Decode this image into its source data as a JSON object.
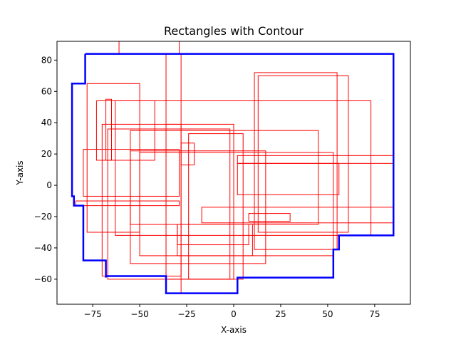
{
  "chart_data": {
    "type": "line",
    "title": "Rectangles with Contour",
    "xlabel": "X-axis",
    "ylabel": "Y-axis",
    "xlim": [
      -94,
      94
    ],
    "ylim": [
      -76,
      92
    ],
    "xticks": [
      -75,
      -50,
      -25,
      0,
      25,
      50,
      75
    ],
    "yticks": [
      -60,
      -40,
      -20,
      0,
      20,
      40,
      60,
      80
    ],
    "grid": false,
    "legend": "none",
    "colors": {
      "rectangles": "#ff0000",
      "contour": "#0000ff"
    },
    "rectangles": [
      [
        -61,
        -29,
        84,
        94
      ],
      [
        -78,
        -50,
        -30,
        65
      ],
      [
        -70,
        -28,
        -58,
        39
      ],
      [
        -67,
        -2,
        -60,
        36
      ],
      [
        -73,
        -42,
        16,
        54
      ],
      [
        -68,
        -65,
        16,
        55
      ],
      [
        -80,
        -29,
        -7,
        23
      ],
      [
        -84,
        -29,
        -13,
        -10
      ],
      [
        -55,
        17,
        -50,
        22
      ],
      [
        -36,
        -28,
        -69,
        84
      ],
      [
        -36,
        0,
        -60,
        39
      ],
      [
        -30,
        8,
        -38,
        -25
      ],
      [
        -28,
        -21,
        13,
        27
      ],
      [
        -24,
        5,
        -60,
        33
      ],
      [
        -17,
        85,
        -24,
        -14
      ],
      [
        2,
        56,
        -6,
        14
      ],
      [
        2,
        85,
        14,
        19
      ],
      [
        8,
        30,
        -23,
        -18
      ],
      [
        11,
        55,
        -41,
        72
      ],
      [
        13,
        61,
        -30,
        70
      ],
      [
        -30,
        10,
        -45,
        -25
      ],
      [
        -63,
        73,
        -32,
        54
      ],
      [
        -50,
        53,
        -45,
        21
      ],
      [
        -55,
        45,
        -25,
        35
      ]
    ],
    "contour": [
      [
        -79,
        84
      ],
      [
        85,
        84
      ],
      [
        85,
        -32
      ],
      [
        56,
        -32
      ],
      [
        56,
        -41
      ],
      [
        53,
        -41
      ],
      [
        53,
        -59
      ],
      [
        2,
        -59
      ],
      [
        2,
        -69
      ],
      [
        -36,
        -69
      ],
      [
        -36,
        -58
      ],
      [
        -68,
        -58
      ],
      [
        -68,
        -59
      ],
      [
        -68,
        -48
      ],
      [
        -80,
        -48
      ],
      [
        -80,
        -13
      ],
      [
        -85,
        -13
      ],
      [
        -85,
        -10
      ],
      [
        -85,
        -7
      ],
      [
        -86,
        -7
      ],
      [
        -86,
        65
      ],
      [
        -79,
        65
      ],
      [
        -79,
        84
      ]
    ]
  }
}
